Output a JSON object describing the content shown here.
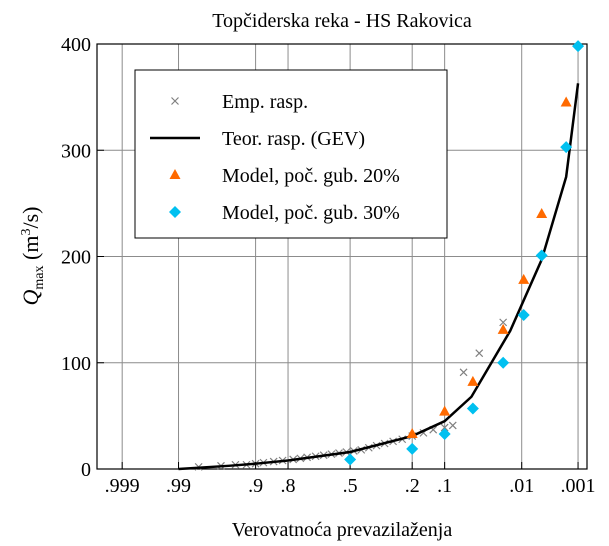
{
  "chart_data": {
    "type": "probability-plot",
    "x_scale": "normal-probability",
    "title": "Topčiderska reka - HS Rakovica",
    "xlabel": "Verovatnoća prevazilaženja",
    "ylabel": [
      "Q",
      "max",
      " (m",
      "3",
      "/s)"
    ],
    "xlim": [
      0.9997,
      0.00066
    ],
    "ylim": [
      0,
      400
    ],
    "xticks": [
      {
        "value": 0.999,
        "label": ".999"
      },
      {
        "value": 0.99,
        "label": ".99"
      },
      {
        "value": 0.9,
        "label": ".9"
      },
      {
        "value": 0.8,
        "label": ".8"
      },
      {
        "value": 0.5,
        "label": ".5"
      },
      {
        "value": 0.2,
        "label": ".2"
      },
      {
        "value": 0.1,
        "label": ".1"
      },
      {
        "value": 0.01,
        "label": ".01"
      },
      {
        "value": 0.001,
        "label": ".001"
      }
    ],
    "yticks": [
      0,
      100,
      200,
      300,
      400
    ],
    "grid": true,
    "legend": "upper left",
    "series": [
      {
        "name": "Emp. rasp.",
        "marker": "x",
        "color": "#808080",
        "x": [
          0.98,
          0.96,
          0.94,
          0.92,
          0.9,
          0.88,
          0.85,
          0.82,
          0.78,
          0.75,
          0.72,
          0.68,
          0.64,
          0.6,
          0.56,
          0.52,
          0.48,
          0.44,
          0.4,
          0.36,
          0.32,
          0.28,
          0.24,
          0.2,
          0.16,
          0.13,
          0.1,
          0.082,
          0.062,
          0.04,
          0.019
        ],
        "values": [
          2,
          3,
          4,
          4,
          5,
          6,
          7,
          8,
          9,
          10,
          11,
          12,
          13,
          14,
          15,
          16,
          17,
          18,
          20,
          22,
          24,
          26,
          28,
          31,
          34,
          37,
          39,
          41,
          91,
          109,
          138
        ]
      },
      {
        "name": "Teor. rasp. (GEV)",
        "marker": "line",
        "color": "#000000",
        "x": [
          0.99,
          0.95,
          0.9,
          0.8,
          0.5,
          0.2,
          0.1,
          0.05,
          0.015,
          0.0047,
          0.0017,
          0.001
        ],
        "values": [
          0,
          3,
          5,
          8,
          16,
          31,
          45,
          68,
          130,
          197,
          275,
          363
        ]
      },
      {
        "name": "Model, poč. gub. 20%",
        "marker": "triangle",
        "color": "#ff6a00",
        "x": [
          0.2,
          0.1,
          0.048,
          0.019,
          0.0093,
          0.0047,
          0.0017
        ],
        "values": [
          33,
          54,
          82,
          131,
          178,
          240,
          345
        ]
      },
      {
        "name": "Model, poč. gub. 30%",
        "marker": "diamond",
        "color": "#00c0f0",
        "x": [
          0.5,
          0.2,
          0.1,
          0.048,
          0.019,
          0.0093,
          0.0047,
          0.0017,
          0.001
        ],
        "values": [
          9,
          19,
          33,
          57,
          100,
          145,
          201,
          303,
          398
        ]
      }
    ]
  }
}
